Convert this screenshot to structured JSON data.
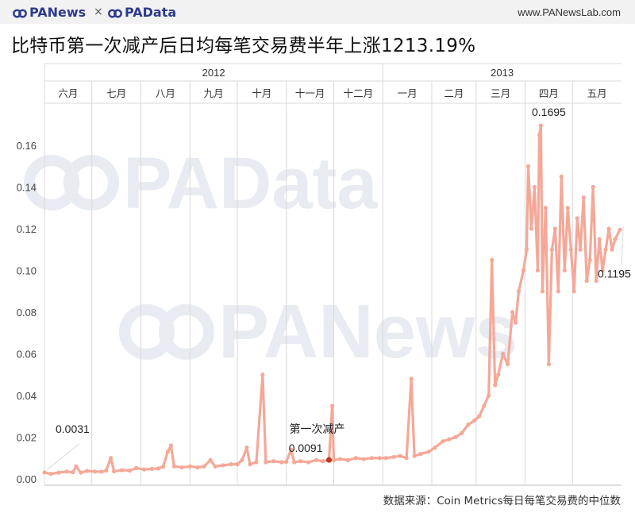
{
  "header": {
    "logo_panews": "PANews",
    "separator": "×",
    "logo_padata": "PAData",
    "site_url": "www.PANewsLab.com"
  },
  "title": "比特币第一次减产后日均每笔交易费半年上涨1213.19%",
  "source": "数据来源：Coin Metrics每日每笔交易费的中位数",
  "watermarks": [
    "PAData",
    "PANews"
  ],
  "colors": {
    "line": "#f5a898",
    "marker": "#c0392b",
    "grid": "#d9d9d9",
    "watermark": "#e8ebf1",
    "logo": "#2e3a8c"
  },
  "chart_data": {
    "type": "line",
    "title": "比特币第一次减产后日均每笔交易费半年上涨1213.19%",
    "xlabel": "",
    "ylabel": "",
    "years": [
      {
        "label": "2012",
        "months": [
          "六月",
          "七月",
          "八月",
          "九月",
          "十月",
          "十一月",
          "十二月"
        ]
      },
      {
        "label": "2013",
        "months": [
          "一月",
          "二月",
          "三月",
          "四月",
          "五月"
        ]
      }
    ],
    "x_range": [
      "2012-06-01",
      "2013-05-31"
    ],
    "ylim": [
      0,
      0.18
    ],
    "yticks": [
      "0.00",
      "0.02",
      "0.04",
      "0.06",
      "0.08",
      "0.10",
      "0.12",
      "0.14",
      "0.16"
    ],
    "grid": "vertical month lines",
    "series": [
      {
        "values": [
          [
            "2012-06-01",
            0.0031
          ],
          [
            "2012-06-05",
            0.0024
          ],
          [
            "2012-06-10",
            0.003
          ],
          [
            "2012-06-15",
            0.0035
          ],
          [
            "2012-06-19",
            0.0032
          ],
          [
            "2012-06-21",
            0.006
          ],
          [
            "2012-06-24",
            0.003
          ],
          [
            "2012-06-28",
            0.0038
          ],
          [
            "2012-07-03",
            0.0035
          ],
          [
            "2012-07-07",
            0.0034
          ],
          [
            "2012-07-10",
            0.004
          ],
          [
            "2012-07-13",
            0.01
          ],
          [
            "2012-07-15",
            0.0036
          ],
          [
            "2012-07-20",
            0.0042
          ],
          [
            "2012-07-25",
            0.004
          ],
          [
            "2012-07-29",
            0.0052
          ],
          [
            "2012-08-03",
            0.0045
          ],
          [
            "2012-08-08",
            0.0048
          ],
          [
            "2012-08-12",
            0.005
          ],
          [
            "2012-08-15",
            0.0058
          ],
          [
            "2012-08-18",
            0.013
          ],
          [
            "2012-08-20",
            0.016
          ],
          [
            "2012-08-22",
            0.006
          ],
          [
            "2012-08-27",
            0.0055
          ],
          [
            "2012-09-01",
            0.006
          ],
          [
            "2012-09-06",
            0.0055
          ],
          [
            "2012-09-10",
            0.006
          ],
          [
            "2012-09-14",
            0.009
          ],
          [
            "2012-09-17",
            0.006
          ],
          [
            "2012-09-22",
            0.0065
          ],
          [
            "2012-09-27",
            0.007
          ],
          [
            "2012-10-01",
            0.007
          ],
          [
            "2012-10-04",
            0.009
          ],
          [
            "2012-10-07",
            0.015
          ],
          [
            "2012-10-09",
            0.007
          ],
          [
            "2012-10-13",
            0.008
          ],
          [
            "2012-10-17",
            0.05
          ],
          [
            "2012-10-19",
            0.008
          ],
          [
            "2012-10-24",
            0.0085
          ],
          [
            "2012-10-29",
            0.008
          ],
          [
            "2012-11-01",
            0.0082
          ],
          [
            "2012-11-04",
            0.014
          ],
          [
            "2012-11-06",
            0.008
          ],
          [
            "2012-11-10",
            0.0085
          ],
          [
            "2012-11-15",
            0.008
          ],
          [
            "2012-11-20",
            0.009
          ],
          [
            "2012-11-24",
            0.0085
          ],
          [
            "2012-11-28",
            0.0091
          ],
          [
            "2012-11-30",
            0.035
          ],
          [
            "2012-12-01",
            0.009
          ],
          [
            "2012-12-05",
            0.0095
          ],
          [
            "2012-12-10",
            0.009
          ],
          [
            "2012-12-15",
            0.01
          ],
          [
            "2012-12-20",
            0.0095
          ],
          [
            "2012-12-25",
            0.01
          ],
          [
            "2012-12-30",
            0.01
          ],
          [
            "2013-01-03",
            0.01
          ],
          [
            "2013-01-08",
            0.0105
          ],
          [
            "2013-01-12",
            0.011
          ],
          [
            "2013-01-16",
            0.01
          ],
          [
            "2013-01-19",
            0.048
          ],
          [
            "2013-01-21",
            0.011
          ],
          [
            "2013-01-25",
            0.012
          ],
          [
            "2013-01-30",
            0.013
          ],
          [
            "2013-02-03",
            0.015
          ],
          [
            "2013-02-08",
            0.018
          ],
          [
            "2013-02-12",
            0.019
          ],
          [
            "2013-02-16",
            0.02
          ],
          [
            "2013-02-20",
            0.022
          ],
          [
            "2013-02-24",
            0.026
          ],
          [
            "2013-02-28",
            0.028
          ],
          [
            "2013-03-03",
            0.03
          ],
          [
            "2013-03-06",
            0.035
          ],
          [
            "2013-03-09",
            0.04
          ],
          [
            "2013-03-11",
            0.105
          ],
          [
            "2013-03-13",
            0.045
          ],
          [
            "2013-03-15",
            0.05
          ],
          [
            "2013-03-18",
            0.06
          ],
          [
            "2013-03-21",
            0.055
          ],
          [
            "2013-03-24",
            0.08
          ],
          [
            "2013-03-26",
            0.075
          ],
          [
            "2013-03-28",
            0.09
          ],
          [
            "2013-03-31",
            0.1
          ],
          [
            "2013-04-02",
            0.11
          ],
          [
            "2013-04-03",
            0.15
          ],
          [
            "2013-04-05",
            0.12
          ],
          [
            "2013-04-07",
            0.14
          ],
          [
            "2013-04-09",
            0.1
          ],
          [
            "2013-04-10",
            0.165
          ],
          [
            "2013-04-11",
            0.1695
          ],
          [
            "2013-04-12",
            0.09
          ],
          [
            "2013-04-14",
            0.13
          ],
          [
            "2013-04-16",
            0.055
          ],
          [
            "2013-04-18",
            0.11
          ],
          [
            "2013-04-20",
            0.12
          ],
          [
            "2013-04-22",
            0.09
          ],
          [
            "2013-04-24",
            0.145
          ],
          [
            "2013-04-26",
            0.1
          ],
          [
            "2013-04-28",
            0.13
          ],
          [
            "2013-04-30",
            0.11
          ],
          [
            "2013-05-02",
            0.09
          ],
          [
            "2013-05-04",
            0.125
          ],
          [
            "2013-05-06",
            0.11
          ],
          [
            "2013-05-08",
            0.135
          ],
          [
            "2013-05-10",
            0.095
          ],
          [
            "2013-05-12",
            0.105
          ],
          [
            "2013-05-14",
            0.14
          ],
          [
            "2013-05-16",
            0.095
          ],
          [
            "2013-05-18",
            0.115
          ],
          [
            "2013-05-20",
            0.1
          ],
          [
            "2013-05-22",
            0.11
          ],
          [
            "2013-05-24",
            0.12
          ],
          [
            "2013-05-26",
            0.11
          ],
          [
            "2013-05-28",
            0.115
          ],
          [
            "2013-05-31",
            0.1195
          ]
        ]
      }
    ],
    "annotations": [
      {
        "text": "0.0031",
        "x": "2012-06-01",
        "y": 0.0031
      },
      {
        "text": "0.0091",
        "x": "2012-11-28",
        "y": 0.0091,
        "label": "第一次减产",
        "highlight": true
      },
      {
        "text": "0.1695",
        "x": "2013-04-11",
        "y": 0.1695
      },
      {
        "text": "0.1195",
        "x": "2013-05-31",
        "y": 0.1195
      }
    ]
  }
}
